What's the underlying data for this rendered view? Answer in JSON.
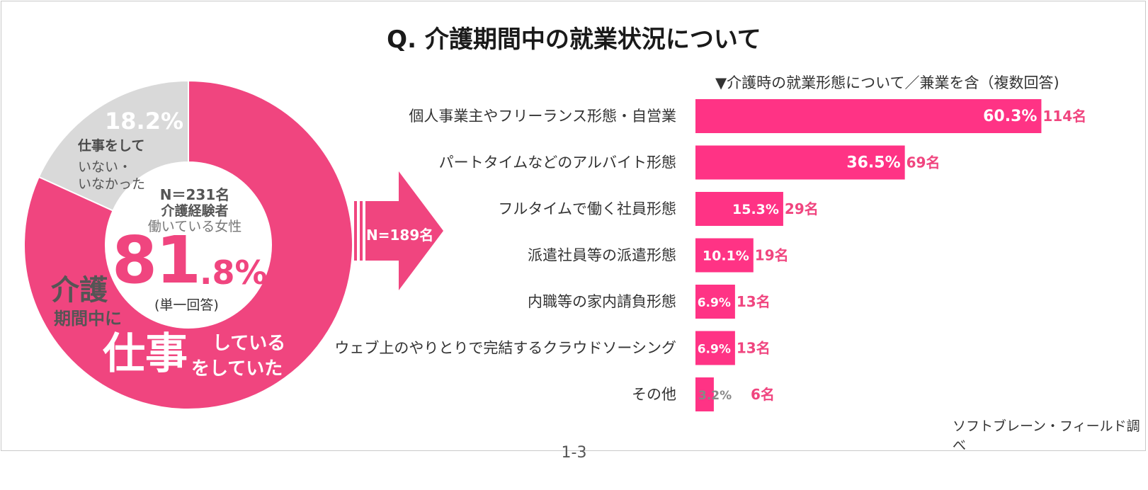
{
  "title": "Q.  介護期間中の就業状況について",
  "donut": {
    "gray_pct": "18.2%",
    "gray_label_1": "仕事をして",
    "gray_label_2": "いない・",
    "gray_label_3": "いなかった",
    "center_n": "N＝231名",
    "center_exp": "介護経験者",
    "center_work": "働いている女性",
    "big_int": "81",
    "big_dec": ".8%",
    "single_answer": "(単一回答)",
    "pink_kaigo": "介護",
    "pink_period": "期間中に",
    "pink_shigoto": "仕事",
    "pink_shiteiru": "している",
    "pink_shiteita": "をしていた",
    "colors": {
      "pink": "#f0457f",
      "gray": "#d9d9d9"
    }
  },
  "arrow": {
    "label": "N=189名",
    "color": "#f0457f"
  },
  "sub_heading": "▼介護時の就業形態について／兼業を含（複数回答)",
  "chart_data": [
    {
      "type": "pie",
      "labels": [
        "仕事をしていた",
        "仕事をしていない・いなかった"
      ],
      "values": [
        81.8,
        18.2
      ],
      "colors": [
        "#f0457f",
        "#d9d9d9"
      ]
    },
    {
      "type": "bar",
      "orientation": "horizontal",
      "title": "▼介護時の就業形態について／兼業を含（複数回答)",
      "categories": [
        "個人事業主やフリーランス形態・自営業",
        "パートタイムなどのアルバイト形態",
        "フルタイムで働く社員形態",
        "派遣社員等の派遣形態",
        "内職等の家内請負形態",
        "ウェブ上のやりとりで完結するクラウドソーシング",
        "その他"
      ],
      "values": [
        60.3,
        36.5,
        15.3,
        10.1,
        6.9,
        6.9,
        3.2
      ],
      "value_labels": [
        "60.3%",
        "36.5%",
        "15.3%",
        "10.1%",
        "6.9%",
        "6.9%",
        "3.2%"
      ],
      "counts": [
        "114名",
        "69名",
        "29名",
        "19名",
        "13名",
        "13名",
        "6名"
      ],
      "color": "#ff3385"
    }
  ],
  "credit": "ソフトブレーン・フィールド調べ",
  "page_number": "1-3"
}
